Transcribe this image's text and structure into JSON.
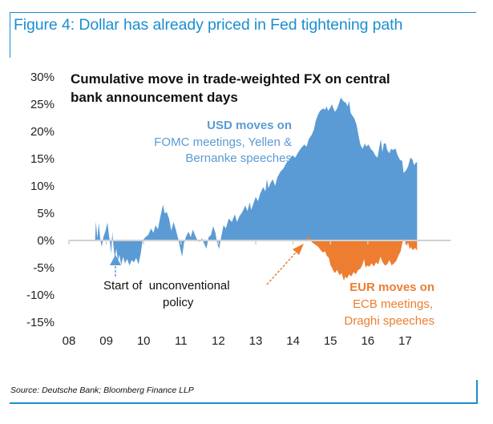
{
  "figure_title": "Figure 4: Dollar has already priced in Fed tightening path",
  "source": "Source: Deutsche Bank; Bloomberg Finance LLP",
  "colors": {
    "frame": "#1a8fd1",
    "usd": "#5b9bd5",
    "eur": "#ed7d31",
    "axis": "#d0d0d0"
  },
  "chart_data": {
    "type": "area",
    "title": "Cumulative move in trade-weighted FX on central bank announcement days",
    "title_lines": [
      "Cumulative move in trade-weighted FX on central",
      "bank announcement days"
    ],
    "xlabel": "",
    "ylabel": "",
    "xlim": [
      2008,
      2018.2
    ],
    "ylim": [
      -15,
      30
    ],
    "x_ticks": [
      2008,
      2009,
      2010,
      2011,
      2012,
      2013,
      2014,
      2015,
      2016,
      2017
    ],
    "x_tick_labels": [
      "08",
      "09",
      "10",
      "11",
      "12",
      "13",
      "14",
      "15",
      "16",
      "17"
    ],
    "y_ticks": [
      -15,
      -10,
      -5,
      0,
      5,
      10,
      15,
      20,
      25,
      30
    ],
    "y_tick_labels": [
      "-15%",
      "-10%",
      "-5%",
      "0%",
      "5%",
      "10%",
      "15%",
      "20%",
      "25%",
      "30%"
    ],
    "grid": false,
    "series": [
      {
        "name": "USD moves on FOMC meetings, Yellen & Bernanke speeches",
        "color": "#5b9bd5",
        "points": [
          [
            2008.0,
            0
          ],
          [
            2008.7,
            0
          ],
          [
            2008.72,
            3.5
          ],
          [
            2008.76,
            0.4
          ],
          [
            2008.8,
            3.2
          ],
          [
            2008.84,
            0.2
          ],
          [
            2008.88,
            -1.2
          ],
          [
            2008.92,
            0.6
          ],
          [
            2008.98,
            1.8
          ],
          [
            2009.03,
            3.3
          ],
          [
            2009.07,
            1.0
          ],
          [
            2009.1,
            -0.5
          ],
          [
            2009.13,
            -2.5
          ],
          [
            2009.16,
            1.6
          ],
          [
            2009.19,
            -1.0
          ],
          [
            2009.23,
            -3.2
          ],
          [
            2009.27,
            -1.5
          ],
          [
            2009.31,
            -3.8
          ],
          [
            2009.35,
            -2.6
          ],
          [
            2009.4,
            -4.5
          ],
          [
            2009.45,
            -3.0
          ],
          [
            2009.5,
            -4.2
          ],
          [
            2009.56,
            -3.4
          ],
          [
            2009.62,
            -4.6
          ],
          [
            2009.68,
            -3.6
          ],
          [
            2009.74,
            -4.0
          ],
          [
            2009.8,
            -3.2
          ],
          [
            2009.86,
            -4.4
          ],
          [
            2009.92,
            -2.5
          ],
          [
            2009.97,
            0.0
          ],
          [
            2010.05,
            0.6
          ],
          [
            2010.12,
            1.0
          ],
          [
            2010.2,
            2.2
          ],
          [
            2010.26,
            1.4
          ],
          [
            2010.32,
            2.8
          ],
          [
            2010.38,
            2.0
          ],
          [
            2010.45,
            4.5
          ],
          [
            2010.52,
            6.6
          ],
          [
            2010.56,
            5.0
          ],
          [
            2010.62,
            5.2
          ],
          [
            2010.68,
            4.0
          ],
          [
            2010.74,
            1.8
          ],
          [
            2010.8,
            3.4
          ],
          [
            2010.86,
            2.0
          ],
          [
            2010.93,
            0.2
          ],
          [
            2010.98,
            -1.5
          ],
          [
            2011.03,
            -3.0
          ],
          [
            2011.08,
            -0.5
          ],
          [
            2011.14,
            0.8
          ],
          [
            2011.2,
            1.6
          ],
          [
            2011.26,
            0.6
          ],
          [
            2011.32,
            2.0
          ],
          [
            2011.36,
            1.2
          ],
          [
            2011.42,
            0.3
          ],
          [
            2011.5,
            -0.3
          ],
          [
            2011.56,
            0.4
          ],
          [
            2011.62,
            -0.6
          ],
          [
            2011.68,
            -1.5
          ],
          [
            2011.74,
            0.6
          ],
          [
            2011.8,
            1.0
          ],
          [
            2011.86,
            2.6
          ],
          [
            2011.92,
            1.4
          ],
          [
            2011.97,
            -0.5
          ],
          [
            2012.02,
            -1.6
          ],
          [
            2012.08,
            0.8
          ],
          [
            2012.14,
            2.8
          ],
          [
            2012.2,
            2.2
          ],
          [
            2012.28,
            4.0
          ],
          [
            2012.36,
            3.4
          ],
          [
            2012.44,
            4.8
          ],
          [
            2012.5,
            3.4
          ],
          [
            2012.56,
            4.4
          ],
          [
            2012.64,
            5.2
          ],
          [
            2012.72,
            6.4
          ],
          [
            2012.78,
            5.4
          ],
          [
            2012.84,
            7.0
          ],
          [
            2012.88,
            5.6
          ],
          [
            2012.94,
            6.8
          ],
          [
            2013.0,
            8.0
          ],
          [
            2013.06,
            7.2
          ],
          [
            2013.12,
            8.6
          ],
          [
            2013.2,
            9.8
          ],
          [
            2013.26,
            9.0
          ],
          [
            2013.3,
            11.3
          ],
          [
            2013.34,
            9.6
          ],
          [
            2013.4,
            10.6
          ],
          [
            2013.46,
            11.2
          ],
          [
            2013.52,
            10.0
          ],
          [
            2013.58,
            11.6
          ],
          [
            2013.66,
            12.6
          ],
          [
            2013.74,
            13.2
          ],
          [
            2013.82,
            14.2
          ],
          [
            2013.9,
            14.8
          ],
          [
            2013.98,
            15.6
          ],
          [
            2014.06,
            15.2
          ],
          [
            2014.14,
            16.2
          ],
          [
            2014.22,
            17.0
          ],
          [
            2014.3,
            17.6
          ],
          [
            2014.36,
            17.2
          ],
          [
            2014.42,
            18.6
          ],
          [
            2014.5,
            19.4
          ],
          [
            2014.56,
            20.4
          ],
          [
            2014.6,
            21.8
          ],
          [
            2014.66,
            23.0
          ],
          [
            2014.72,
            23.8
          ],
          [
            2014.8,
            24.2
          ],
          [
            2014.86,
            24.0
          ],
          [
            2014.9,
            24.6
          ],
          [
            2014.94,
            23.8
          ],
          [
            2015.0,
            24.4
          ],
          [
            2015.04,
            25.0
          ],
          [
            2015.08,
            24.2
          ],
          [
            2015.12,
            23.6
          ],
          [
            2015.18,
            24.2
          ],
          [
            2015.24,
            25.4
          ],
          [
            2015.28,
            26.2
          ],
          [
            2015.34,
            25.6
          ],
          [
            2015.42,
            25.2
          ],
          [
            2015.46,
            24.6
          ],
          [
            2015.5,
            25.6
          ],
          [
            2015.54,
            23.4
          ],
          [
            2015.58,
            23.0
          ],
          [
            2015.64,
            22.4
          ],
          [
            2015.7,
            21.2
          ],
          [
            2015.76,
            19.0
          ],
          [
            2015.8,
            17.6
          ],
          [
            2015.86,
            16.8
          ],
          [
            2015.92,
            17.8
          ],
          [
            2015.96,
            17.2
          ],
          [
            2016.02,
            17.6
          ],
          [
            2016.08,
            16.8
          ],
          [
            2016.14,
            16.4
          ],
          [
            2016.2,
            15.6
          ],
          [
            2016.26,
            15.2
          ],
          [
            2016.3,
            16.8
          ],
          [
            2016.35,
            18.6
          ],
          [
            2016.39,
            16.2
          ],
          [
            2016.43,
            17.8
          ],
          [
            2016.48,
            17.8
          ],
          [
            2016.52,
            16.6
          ],
          [
            2016.58,
            16.0
          ],
          [
            2016.62,
            16.8
          ],
          [
            2016.68,
            16.6
          ],
          [
            2016.74,
            16.9
          ],
          [
            2016.8,
            15.6
          ],
          [
            2016.86,
            14.8
          ],
          [
            2016.92,
            14.6
          ],
          [
            2016.96,
            12.4
          ],
          [
            2017.02,
            12.8
          ],
          [
            2017.08,
            13.6
          ],
          [
            2017.14,
            15.2
          ],
          [
            2017.2,
            14.8
          ],
          [
            2017.24,
            13.8
          ],
          [
            2017.28,
            14.2
          ],
          [
            2017.32,
            14.4
          ]
        ]
      },
      {
        "name": "EUR moves on ECB meetings, Draghi speeches",
        "color": "#ed7d31",
        "points": [
          [
            2014.3,
            0
          ],
          [
            2014.38,
            0.3
          ],
          [
            2014.42,
            0.9
          ],
          [
            2014.46,
            0.2
          ],
          [
            2014.5,
            -0.3
          ],
          [
            2014.56,
            -0.6
          ],
          [
            2014.62,
            -0.9
          ],
          [
            2014.68,
            -1.2
          ],
          [
            2014.74,
            -1.8
          ],
          [
            2014.8,
            -2.2
          ],
          [
            2014.86,
            -2.0
          ],
          [
            2014.9,
            -2.8
          ],
          [
            2014.96,
            -3.2
          ],
          [
            2015.0,
            -4.5
          ],
          [
            2015.04,
            -5.0
          ],
          [
            2015.08,
            -5.6
          ],
          [
            2015.12,
            -6.0
          ],
          [
            2015.18,
            -5.4
          ],
          [
            2015.24,
            -6.4
          ],
          [
            2015.3,
            -6.0
          ],
          [
            2015.36,
            -7.4
          ],
          [
            2015.4,
            -6.6
          ],
          [
            2015.44,
            -7.0
          ],
          [
            2015.5,
            -6.2
          ],
          [
            2015.56,
            -6.6
          ],
          [
            2015.62,
            -5.8
          ],
          [
            2015.68,
            -6.2
          ],
          [
            2015.74,
            -5.4
          ],
          [
            2015.8,
            -5.2
          ],
          [
            2015.86,
            -4.4
          ],
          [
            2015.9,
            -3.4
          ],
          [
            2015.94,
            -5.0
          ],
          [
            2015.98,
            -4.6
          ],
          [
            2016.04,
            -4.8
          ],
          [
            2016.1,
            -4.2
          ],
          [
            2016.16,
            -4.8
          ],
          [
            2016.22,
            -4.0
          ],
          [
            2016.28,
            -4.4
          ],
          [
            2016.34,
            -3.0
          ],
          [
            2016.4,
            -4.0
          ],
          [
            2016.46,
            -4.6
          ],
          [
            2016.52,
            -4.4
          ],
          [
            2016.58,
            -3.6
          ],
          [
            2016.64,
            -4.6
          ],
          [
            2016.7,
            -4.2
          ],
          [
            2016.76,
            -3.8
          ],
          [
            2016.82,
            -2.8
          ],
          [
            2016.88,
            -2.0
          ],
          [
            2016.92,
            -0.6
          ],
          [
            2016.96,
            0.3
          ],
          [
            2017.0,
            -0.2
          ],
          [
            2017.04,
            -1.0
          ],
          [
            2017.08,
            -0.4
          ],
          [
            2017.12,
            -1.6
          ],
          [
            2017.16,
            -1.2
          ],
          [
            2017.2,
            -1.8
          ],
          [
            2017.26,
            -1.4
          ],
          [
            2017.32,
            -1.8
          ]
        ]
      }
    ],
    "annotations": [
      {
        "id": "usd",
        "lines": [
          "USD moves on",
          "FOMC meetings, Yellen &",
          "Bernanke speeches"
        ],
        "color": "#5b9bd5"
      },
      {
        "id": "eur",
        "lines": [
          "EUR moves on",
          "ECB meetings,",
          "Draghi speeches"
        ],
        "color": "#ed7d31"
      },
      {
        "id": "policy",
        "lines": [
          "Start of  unconventional",
          "policy"
        ],
        "color": "#111111"
      }
    ],
    "arrows": [
      {
        "label": "Start of unconventional policy (USD)",
        "color": "#5b9bd5",
        "points_to_year": 2009.2
      },
      {
        "label": "Start of unconventional policy (EUR)",
        "color": "#ed7d31",
        "points_to_year": 2014.4
      }
    ]
  }
}
